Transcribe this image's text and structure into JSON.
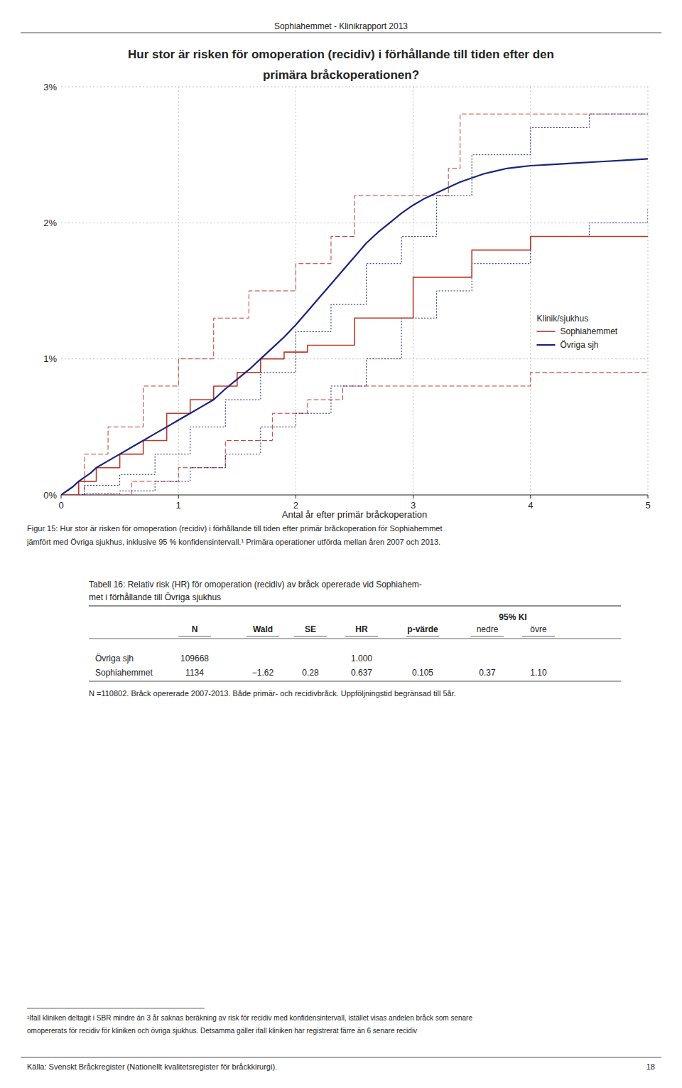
{
  "page_title": "Sophiahemmet - Klinikrapport 2013",
  "chart_data": {
    "type": "line",
    "title": [
      "Hur stor är risken för omoperation (recidiv) i förhållande till tiden efter den",
      "primära bråckoperationen?"
    ],
    "x_label": "Antal år efter primär bråckoperation",
    "xlim": [
      0,
      5
    ],
    "xticks": [
      0,
      1,
      2,
      3,
      4,
      5
    ],
    "ylim": [
      0,
      0.03
    ],
    "yticks": [
      {
        "value": 0,
        "label": "0%"
      },
      {
        "value": 0.01,
        "label": "1%"
      },
      {
        "value": 0.02,
        "label": "2%"
      },
      {
        "value": 0.03,
        "label": "3%"
      }
    ],
    "grid": true,
    "legend": "lower right",
    "legend_title": "Klinik/sjukhus",
    "series": [
      {
        "name": "Sophiahemmet",
        "type": "step",
        "color": "#C0392B",
        "x": [
          0,
          0.15,
          0.3,
          0.5,
          0.7,
          0.9,
          1.1,
          1.3,
          1.5,
          1.7,
          1.9,
          2.1,
          2.5,
          3.0,
          3.5,
          4.0,
          5.0
        ],
        "values": [
          0,
          0.001,
          0.002,
          0.003,
          0.004,
          0.006,
          0.007,
          0.008,
          0.009,
          0.01,
          0.0105,
          0.011,
          0.013,
          0.016,
          0.018,
          0.019,
          0.019
        ],
        "ci_upper": {
          "type": "step",
          "line_style": "dashed",
          "x": [
            0,
            0.2,
            0.4,
            0.7,
            1.0,
            1.3,
            1.6,
            2.0,
            2.3,
            2.5,
            3.3,
            3.4,
            4.0,
            5.0
          ],
          "values": [
            0,
            0.003,
            0.005,
            0.008,
            0.01,
            0.013,
            0.015,
            0.017,
            0.019,
            0.022,
            0.024,
            0.028,
            0.028,
            0.028
          ]
        },
        "ci_lower": {
          "type": "step",
          "line_style": "dashed",
          "x": [
            0,
            0.3,
            0.6,
            1.0,
            1.4,
            1.8,
            2.1,
            2.4,
            3.3,
            4.0,
            5.0
          ],
          "values": [
            0,
            0.0,
            0.001,
            0.002,
            0.004,
            0.006,
            0.007,
            0.008,
            0.008,
            0.009,
            0.009
          ]
        }
      },
      {
        "name": "Övriga sjh",
        "type": "line",
        "color": "#1A237E",
        "x": [
          0,
          0.05,
          0.1,
          0.15,
          0.2,
          0.25,
          0.3,
          0.4,
          0.5,
          0.6,
          0.7,
          0.8,
          0.9,
          1.0,
          1.1,
          1.2,
          1.3,
          1.4,
          1.5,
          1.6,
          1.7,
          1.8,
          1.9,
          2.0,
          2.1,
          2.2,
          2.3,
          2.4,
          2.5,
          2.6,
          2.7,
          2.8,
          2.9,
          3.0,
          3.1,
          3.2,
          3.3,
          3.4,
          3.5,
          3.6,
          3.7,
          3.8,
          3.9,
          4.0,
          4.2,
          4.4,
          4.6,
          4.8,
          5.0
        ],
        "values": [
          0,
          0.0003,
          0.0006,
          0.001,
          0.0013,
          0.0016,
          0.002,
          0.0025,
          0.003,
          0.0035,
          0.004,
          0.0045,
          0.005,
          0.0055,
          0.006,
          0.0065,
          0.007,
          0.0078,
          0.0085,
          0.0092,
          0.01,
          0.0108,
          0.0116,
          0.0125,
          0.0135,
          0.0145,
          0.0155,
          0.0165,
          0.0175,
          0.0185,
          0.0193,
          0.02,
          0.0207,
          0.0213,
          0.0218,
          0.0222,
          0.0226,
          0.023,
          0.0233,
          0.0236,
          0.0238,
          0.024,
          0.0241,
          0.0242,
          0.0243,
          0.0244,
          0.0245,
          0.0246,
          0.0247
        ],
        "ci_upper": {
          "type": "step",
          "line_style": "dotted",
          "x": [
            0,
            0.2,
            0.5,
            0.8,
            1.1,
            1.4,
            1.7,
            2.0,
            2.3,
            2.6,
            2.9,
            3.2,
            3.5,
            4.0,
            4.5,
            5.0
          ],
          "values": [
            0,
            0.0007,
            0.0015,
            0.003,
            0.005,
            0.007,
            0.009,
            0.012,
            0.014,
            0.017,
            0.019,
            0.022,
            0.025,
            0.027,
            0.028,
            0.028
          ]
        },
        "ci_lower": {
          "type": "step",
          "line_style": "dotted",
          "x": [
            0,
            0.2,
            0.5,
            0.8,
            1.1,
            1.4,
            1.7,
            2.0,
            2.3,
            2.6,
            2.9,
            3.2,
            3.5,
            4.0,
            4.5,
            5.0
          ],
          "values": [
            0,
            0.0001,
            0.0003,
            0.001,
            0.002,
            0.003,
            0.005,
            0.006,
            0.008,
            0.01,
            0.013,
            0.015,
            0.017,
            0.019,
            0.02,
            0.021
          ]
        }
      }
    ]
  },
  "figure_caption": [
    "Figur 15: Hur stor är risken för omoperation (recidiv) i förhållande till tiden efter primär bråckoperation för Sophiahemmet",
    "jämfört med Övriga sjukhus, inklusive 95 % konfidensintervall.¹ Primära operationer utförda mellan åren 2007 och 2013."
  ],
  "table": {
    "title": [
      "Tabell 16: Relativ risk (HR) för omoperation (recidiv) av bråck opererade vid Sophiahem-",
      "met i förhållande till Övriga sjukhus"
    ],
    "columns": [
      "N",
      "Wald",
      "SE",
      "HR",
      "p-värde"
    ],
    "ki_header": "95% KI",
    "ki_columns": [
      "nedre",
      "övre"
    ],
    "rows": [
      {
        "label": "Övriga sjh",
        "cells": [
          "109668",
          null,
          null,
          "1.000",
          null,
          null,
          null
        ]
      },
      {
        "label": "Sophiahemmet",
        "cells": [
          "1134",
          "−1.62",
          "0.28",
          "0.637",
          "0.105",
          "0.37",
          "1.10"
        ]
      }
    ],
    "footnote": "N =110802. Bråck opererade 2007-2013. Både primär- och recidivbråck. Uppföljningstid begränsad till 5år."
  },
  "footnote": [
    "¹Ifall kliniken deltagit i SBR mindre än 3 år saknas beräkning av risk för recidiv med konfidensintervall, istället visas andelen bråck som senare",
    "omopererats för recidiv för kliniken och övriga sjukhus. Detsamma gäller ifall kliniken har registrerat färre än 6 senare recidiv"
  ],
  "source": "Källa: Svenskt Bråckregister (Nationellt kvalitetsregister för bråckkirurgi).",
  "page_number": "18"
}
